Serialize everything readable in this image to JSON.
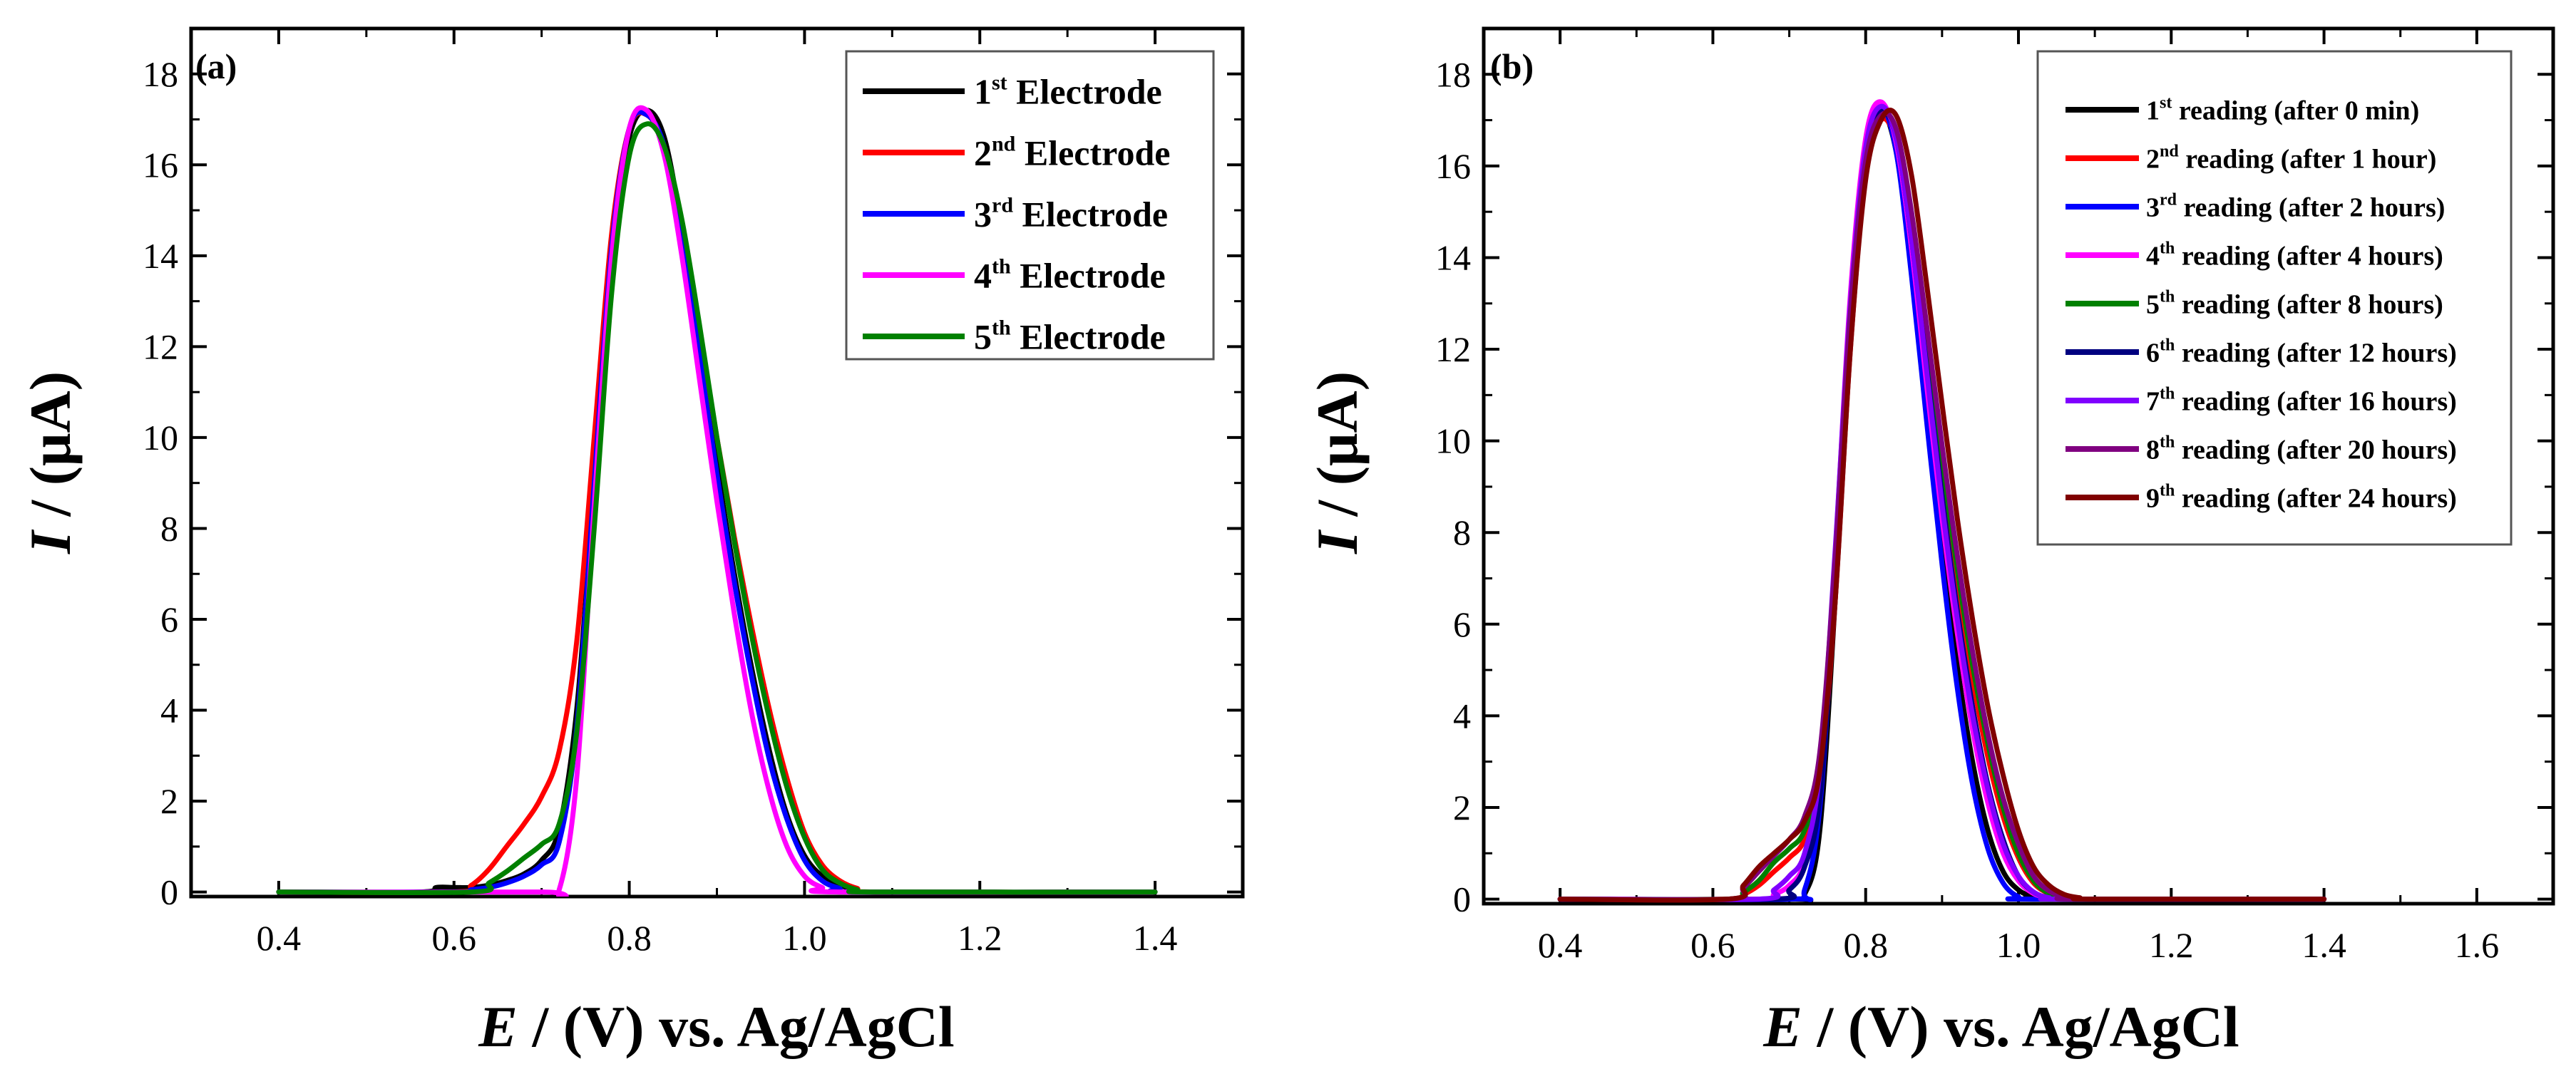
{
  "chart_data": [
    {
      "type": "line",
      "panel_label": "(a)",
      "xlabel_italic": "E",
      "xlabel_rest": " / (V) vs. Ag/AgCl",
      "ylabel_italic": "I",
      "ylabel_rest": " / (μA)",
      "xlim": [
        0.3,
        1.5
      ],
      "ylim": [
        -0.1,
        19
      ],
      "xticks": [
        0.4,
        0.6,
        0.8,
        1.0,
        1.2,
        1.4
      ],
      "xtick_labels": [
        "0.4",
        "0.6",
        "0.8",
        "1.0",
        "1.2",
        "1.4"
      ],
      "yticks": [
        0,
        2,
        4,
        6,
        8,
        10,
        12,
        14,
        16,
        18
      ],
      "ytick_labels": [
        "0",
        "2",
        "4",
        "6",
        "8",
        "10",
        "12",
        "14",
        "16",
        "18"
      ],
      "legend_position": "top-right",
      "series": [
        {
          "name": "Electrode",
          "ord": "1",
          "sup": "st",
          "color": "#000000",
          "x": [
            0.4,
            0.56,
            0.58,
            0.6,
            0.62,
            0.64,
            0.66,
            0.68,
            0.7,
            0.72,
            0.74,
            0.76,
            0.78,
            0.8,
            0.82,
            0.84,
            0.86,
            0.88,
            0.9,
            0.92,
            0.94,
            0.96,
            0.98,
            1.0,
            1.02,
            1.04,
            1.06,
            1.08,
            1.4
          ],
          "values": [
            0,
            0,
            0.1,
            0.1,
            0.1,
            0.15,
            0.25,
            0.4,
            0.7,
            1.4,
            4.0,
            9.0,
            14.0,
            16.6,
            17.2,
            16.6,
            14.6,
            12.0,
            9.4,
            7.0,
            4.9,
            3.1,
            1.7,
            0.8,
            0.35,
            0.15,
            0.05,
            0,
            0
          ]
        },
        {
          "name": "Electrode",
          "ord": "2",
          "sup": "nd",
          "color": "#ff0000",
          "x": [
            0.4,
            0.6,
            0.62,
            0.64,
            0.66,
            0.68,
            0.7,
            0.72,
            0.74,
            0.76,
            0.78,
            0.8,
            0.82,
            0.84,
            0.86,
            0.88,
            0.9,
            0.92,
            0.94,
            0.96,
            0.98,
            1.0,
            1.02,
            1.04,
            1.06,
            1.08,
            1.4
          ],
          "values": [
            0,
            0,
            0.15,
            0.5,
            1.0,
            1.5,
            2.1,
            3.1,
            5.5,
            10.0,
            14.5,
            16.8,
            17.1,
            16.4,
            14.7,
            12.4,
            10.0,
            7.8,
            5.8,
            4.0,
            2.5,
            1.3,
            0.6,
            0.25,
            0.08,
            0,
            0
          ]
        },
        {
          "name": "Electrode",
          "ord": "3",
          "sup": "rd",
          "color": "#0000ff",
          "x": [
            0.4,
            0.6,
            0.62,
            0.64,
            0.66,
            0.68,
            0.7,
            0.72,
            0.74,
            0.76,
            0.78,
            0.8,
            0.82,
            0.84,
            0.86,
            0.88,
            0.9,
            0.92,
            0.94,
            0.96,
            0.98,
            1.0,
            1.02,
            1.04,
            1.06,
            1.4
          ],
          "values": [
            0,
            0,
            0.05,
            0.1,
            0.2,
            0.35,
            0.6,
            1.1,
            3.6,
            9.0,
            14.2,
            16.8,
            17.1,
            16.4,
            14.4,
            11.8,
            9.2,
            6.8,
            4.7,
            2.9,
            1.6,
            0.7,
            0.25,
            0.08,
            0,
            0
          ]
        },
        {
          "name": "Electrode",
          "ord": "4",
          "sup": "th",
          "color": "#ff00ff",
          "x": [
            0.4,
            0.7,
            0.72,
            0.74,
            0.76,
            0.78,
            0.8,
            0.82,
            0.84,
            0.86,
            0.88,
            0.9,
            0.92,
            0.94,
            0.96,
            0.98,
            1.0,
            1.02,
            1.04,
            1.4
          ],
          "values": [
            0,
            0,
            0.05,
            2.5,
            8.5,
            14.0,
            16.8,
            17.2,
            16.2,
            14.0,
            11.3,
            8.6,
            6.1,
            3.9,
            2.2,
            1.0,
            0.35,
            0.1,
            0,
            0
          ]
        },
        {
          "name": "Electrode",
          "ord": "5",
          "sup": "th",
          "color": "#008000",
          "x": [
            0.4,
            0.62,
            0.64,
            0.66,
            0.68,
            0.7,
            0.72,
            0.74,
            0.76,
            0.78,
            0.8,
            0.82,
            0.84,
            0.86,
            0.88,
            0.9,
            0.92,
            0.94,
            0.96,
            0.98,
            1.0,
            1.02,
            1.04,
            1.06,
            1.08,
            1.4
          ],
          "values": [
            0,
            0,
            0.2,
            0.45,
            0.75,
            1.05,
            1.5,
            3.5,
            8.0,
            13.2,
            16.2,
            16.9,
            16.4,
            14.8,
            12.5,
            10.0,
            7.7,
            5.6,
            3.8,
            2.3,
            1.2,
            0.5,
            0.2,
            0.05,
            0,
            0
          ]
        }
      ]
    },
    {
      "type": "line",
      "panel_label": "(b)",
      "xlabel_italic": "E",
      "xlabel_rest": " / (V) vs. Ag/AgCl",
      "ylabel_italic": "I",
      "ylabel_rest": " / (μA)",
      "xlim": [
        0.3,
        1.7
      ],
      "ylim": [
        -0.1,
        19
      ],
      "xticks": [
        0.4,
        0.6,
        0.8,
        1.0,
        1.2,
        1.4,
        1.6
      ],
      "xtick_labels": [
        "0.4",
        "0.6",
        "0.8",
        "1.0",
        "1.2",
        "1.4",
        "1.6"
      ],
      "yticks": [
        0,
        2,
        4,
        6,
        8,
        10,
        12,
        14,
        16,
        18
      ],
      "ytick_labels": [
        "0",
        "2",
        "4",
        "6",
        "8",
        "10",
        "12",
        "14",
        "16",
        "18"
      ],
      "legend_position": "top-right",
      "series": [
        {
          "name": "reading (after 0 min)",
          "ord": "1",
          "sup": "st",
          "color": "#000000",
          "x": [
            0.4,
            0.7,
            0.72,
            0.74,
            0.76,
            0.78,
            0.8,
            0.82,
            0.84,
            0.86,
            0.88,
            0.9,
            0.92,
            0.94,
            0.96,
            0.98,
            1.0,
            1.02,
            1.04,
            1.4
          ],
          "values": [
            0,
            0,
            0.1,
            1.5,
            6.5,
            12.5,
            16.3,
            17.2,
            16.3,
            13.8,
            10.8,
            7.8,
            5.1,
            3.0,
            1.5,
            0.6,
            0.2,
            0.05,
            0,
            0
          ]
        },
        {
          "name": "reading (after 1 hour)",
          "ord": "2",
          "sup": "nd",
          "color": "#ff0000",
          "x": [
            0.4,
            0.62,
            0.64,
            0.66,
            0.68,
            0.7,
            0.72,
            0.74,
            0.76,
            0.78,
            0.8,
            0.82,
            0.84,
            0.86,
            0.88,
            0.9,
            0.92,
            0.94,
            0.96,
            0.98,
            1.0,
            1.02,
            1.04,
            1.06,
            1.08,
            1.4
          ],
          "values": [
            0,
            0,
            0.1,
            0.3,
            0.6,
            0.9,
            1.3,
            2.5,
            6.5,
            12.0,
            15.8,
            17.0,
            16.5,
            14.5,
            11.8,
            9.2,
            6.8,
            4.8,
            3.1,
            1.8,
            0.9,
            0.35,
            0.12,
            0.03,
            0,
            0
          ]
        },
        {
          "name": "reading (after 2 hours)",
          "ord": "3",
          "sup": "rd",
          "color": "#0000ff",
          "x": [
            0.4,
            0.7,
            0.72,
            0.74,
            0.76,
            0.78,
            0.8,
            0.82,
            0.84,
            0.86,
            0.88,
            0.9,
            0.92,
            0.94,
            0.96,
            0.98,
            1.0,
            1.02,
            1.4
          ],
          "values": [
            0,
            0,
            0.2,
            2.0,
            7.0,
            12.8,
            16.4,
            17.3,
            16.3,
            13.6,
            10.4,
            7.3,
            4.6,
            2.5,
            1.1,
            0.35,
            0.05,
            0,
            0
          ]
        },
        {
          "name": "reading (after 4 hours)",
          "ord": "4",
          "sup": "th",
          "color": "#ff00ff",
          "x": [
            0.4,
            0.66,
            0.68,
            0.7,
            0.72,
            0.74,
            0.76,
            0.78,
            0.8,
            0.82,
            0.84,
            0.86,
            0.88,
            0.9,
            0.92,
            0.94,
            0.96,
            0.98,
            1.0,
            1.02,
            1.04,
            1.06,
            1.4
          ],
          "values": [
            0,
            0,
            0.1,
            0.3,
            0.8,
            2.5,
            7.5,
            13.2,
            16.6,
            17.4,
            16.5,
            14.2,
            11.2,
            8.3,
            5.8,
            3.7,
            2.1,
            1.0,
            0.4,
            0.12,
            0.03,
            0,
            0
          ]
        },
        {
          "name": "reading (after 8 hours)",
          "ord": "5",
          "sup": "th",
          "color": "#008000",
          "x": [
            0.4,
            0.62,
            0.64,
            0.66,
            0.68,
            0.7,
            0.72,
            0.74,
            0.76,
            0.78,
            0.8,
            0.82,
            0.84,
            0.86,
            0.88,
            0.9,
            0.92,
            0.94,
            0.96,
            0.98,
            1.0,
            1.02,
            1.04,
            1.06,
            1.08,
            1.4
          ],
          "values": [
            0,
            0,
            0.15,
            0.4,
            0.8,
            1.1,
            1.5,
            2.8,
            6.8,
            12.2,
            15.9,
            17.1,
            16.7,
            14.8,
            12.2,
            9.6,
            7.2,
            5.1,
            3.4,
            2.0,
            1.0,
            0.4,
            0.12,
            0.03,
            0,
            0
          ]
        },
        {
          "name": "reading (after 12 hours)",
          "ord": "6",
          "sup": "th",
          "color": "#000080",
          "x": [
            0.4,
            0.68,
            0.7,
            0.72,
            0.74,
            0.76,
            0.78,
            0.8,
            0.82,
            0.84,
            0.86,
            0.88,
            0.9,
            0.92,
            0.94,
            0.96,
            0.98,
            1.0,
            1.02,
            1.04,
            1.06,
            1.4
          ],
          "values": [
            0,
            0,
            0.2,
            0.7,
            2.2,
            7.0,
            12.8,
            16.3,
            17.2,
            16.6,
            14.4,
            11.6,
            8.8,
            6.3,
            4.2,
            2.5,
            1.3,
            0.5,
            0.15,
            0.03,
            0,
            0
          ]
        },
        {
          "name": "reading (after 16 hours)",
          "ord": "7",
          "sup": "th",
          "color": "#8000ff",
          "x": [
            0.4,
            0.66,
            0.68,
            0.7,
            0.72,
            0.74,
            0.76,
            0.78,
            0.8,
            0.82,
            0.84,
            0.86,
            0.88,
            0.9,
            0.92,
            0.94,
            0.96,
            0.98,
            1.0,
            1.02,
            1.04,
            1.06,
            1.4
          ],
          "values": [
            0,
            0,
            0.2,
            0.5,
            1.0,
            2.8,
            7.6,
            13.0,
            16.4,
            17.3,
            16.6,
            14.4,
            11.5,
            8.6,
            6.1,
            4.0,
            2.4,
            1.2,
            0.5,
            0.15,
            0.03,
            0,
            0
          ]
        },
        {
          "name": "reading (after 20 hours)",
          "ord": "8",
          "sup": "th",
          "color": "#800080",
          "x": [
            0.4,
            0.62,
            0.64,
            0.66,
            0.68,
            0.7,
            0.72,
            0.74,
            0.76,
            0.78,
            0.8,
            0.82,
            0.84,
            0.86,
            0.88,
            0.9,
            0.92,
            0.94,
            0.96,
            0.98,
            1.0,
            1.02,
            1.04,
            1.06,
            1.08,
            1.4
          ],
          "values": [
            0,
            0,
            0.25,
            0.6,
            0.95,
            1.3,
            1.8,
            3.2,
            7.4,
            12.8,
            16.1,
            17.1,
            16.8,
            15.0,
            12.5,
            9.9,
            7.5,
            5.4,
            3.6,
            2.2,
            1.2,
            0.5,
            0.18,
            0.05,
            0,
            0
          ]
        },
        {
          "name": "reading (after 24 hours)",
          "ord": "9",
          "sup": "th",
          "color": "#800000",
          "x": [
            0.4,
            0.62,
            0.64,
            0.66,
            0.68,
            0.7,
            0.72,
            0.74,
            0.76,
            0.78,
            0.8,
            0.82,
            0.84,
            0.86,
            0.88,
            0.9,
            0.92,
            0.94,
            0.96,
            0.98,
            1.0,
            1.02,
            1.04,
            1.06,
            1.08,
            1.1,
            1.4
          ],
          "values": [
            0,
            0,
            0.3,
            0.7,
            1.0,
            1.3,
            1.7,
            2.8,
            6.5,
            12.0,
            15.7,
            17.0,
            17.1,
            15.8,
            13.4,
            10.8,
            8.3,
            6.1,
            4.2,
            2.7,
            1.5,
            0.7,
            0.3,
            0.1,
            0.03,
            0,
            0
          ]
        }
      ]
    }
  ]
}
